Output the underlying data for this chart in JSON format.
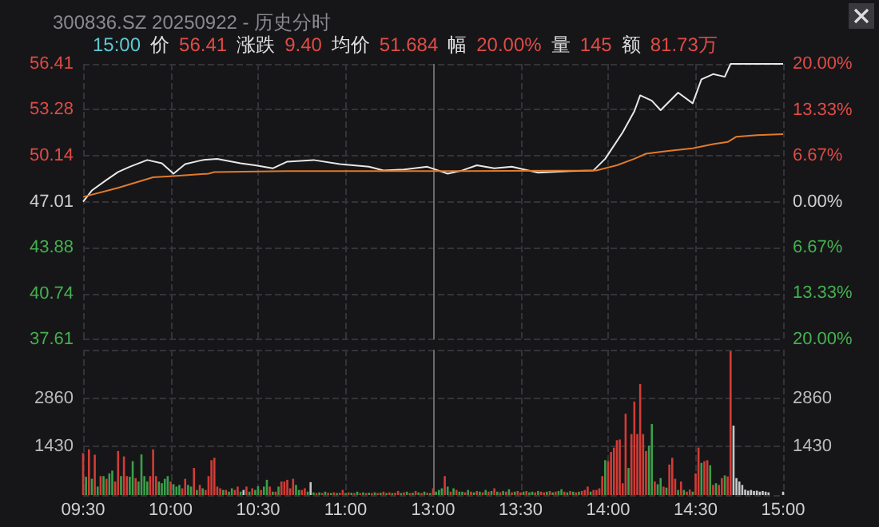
{
  "chart_data": [
    {
      "type": "line",
      "title": "300836.SZ 20250922 - 历史分时",
      "annotations": [
        "15:00",
        "价",
        "56.41",
        "涨跌",
        "9.40",
        "均价",
        "51.684",
        "幅",
        "20.00%",
        "量",
        "145",
        "额",
        "81.73万"
      ],
      "categories": [
        "09:30",
        null,
        null,
        null,
        null,
        null,
        null,
        null,
        null,
        null,
        null,
        null,
        null,
        null,
        null,
        null,
        null,
        null,
        null,
        null,
        null,
        null,
        null,
        null,
        null,
        null,
        null,
        null,
        null,
        null,
        "10:00",
        null,
        null,
        null,
        null,
        null,
        null,
        null,
        null,
        null,
        null,
        null,
        null,
        null,
        null,
        null,
        null,
        null,
        null,
        null,
        null,
        null,
        null,
        null,
        null,
        null,
        null,
        null,
        null,
        null,
        "10:30",
        null,
        null,
        null,
        null,
        null,
        null,
        null,
        null,
        null,
        null,
        null,
        null,
        null,
        null,
        null,
        null,
        null,
        null,
        null,
        null,
        null,
        null,
        null,
        null,
        null,
        null,
        null,
        null,
        null,
        "11:00",
        null,
        null,
        null,
        null,
        null,
        null,
        null,
        null,
        null,
        null,
        null,
        null,
        null,
        null,
        null,
        null,
        null,
        null,
        null,
        null,
        null,
        null,
        null,
        null,
        null,
        null,
        null,
        null,
        null,
        "13:00",
        null,
        null,
        null,
        null,
        null,
        null,
        null,
        null,
        null,
        null,
        null,
        null,
        null,
        null,
        null,
        null,
        null,
        null,
        null,
        null,
        null,
        null,
        null,
        null,
        null,
        null,
        null,
        null,
        null,
        "13:30",
        null,
        null,
        null,
        null,
        null,
        null,
        null,
        null,
        null,
        null,
        null,
        null,
        null,
        null,
        null,
        null,
        null,
        null,
        null,
        null,
        null,
        null,
        null,
        null,
        null,
        null,
        null,
        null,
        null,
        "14:00",
        null,
        null,
        null,
        null,
        null,
        null,
        null,
        null,
        null,
        null,
        null,
        null,
        null,
        null,
        null,
        null,
        null,
        null,
        null,
        null,
        null,
        null,
        null,
        null,
        null,
        null,
        null,
        null,
        null,
        "14:30",
        null,
        null,
        null,
        null,
        null,
        null,
        null,
        null,
        null,
        null,
        null,
        null,
        null,
        null,
        null,
        null,
        null,
        null,
        null,
        null,
        null,
        null,
        null,
        null,
        null,
        null,
        null,
        null,
        null,
        "15:00"
      ],
      "tick_labels": "y",
      "ylim": [
        37.61,
        56.41
      ],
      "yticks": [
        37.61,
        40.74,
        43.88,
        47.01,
        50.14,
        53.28,
        56.41
      ],
      "y2lim": [
        -20,
        20
      ],
      "y2ticks": [
        {
          "value": -20,
          "label": "20.00%"
        },
        {
          "value": -13.33,
          "label": "13.33%"
        },
        {
          "value": -6.67,
          "label": "6.67%"
        },
        {
          "value": 0,
          "label": "0.00%"
        },
        {
          "value": 6.67,
          "label": "6.67%"
        },
        {
          "value": 13.33,
          "label": "13.33%"
        },
        {
          "value": 20,
          "label": "20.00%"
        }
      ],
      "grid": true,
      "ref_lines": [
        {
          "axis": "x",
          "value": "13:00",
          "color": "#6a6a6a"
        }
      ],
      "series": [
        {
          "color": "#e8e8e8",
          "values": [
            47.0,
            null,
            null,
            47.77,
            null,
            null,
            null,
            null,
            48.49,
            null,
            null,
            null,
            49.03,
            null,
            null,
            null,
            49.39,
            null,
            null,
            null,
            null,
            null,
            49.85,
            null,
            null,
            null,
            null,
            49.63,
            null,
            null,
            null,
            48.92,
            null,
            null,
            null,
            49.57,
            null,
            null,
            null,
            null,
            null,
            49.85,
            null,
            null,
            null,
            null,
            49.93,
            null,
            null,
            null,
            null,
            null,
            null,
            null,
            49.63,
            null,
            null,
            null,
            null,
            49.49,
            null,
            null,
            null,
            null,
            null,
            49.28,
            null,
            null,
            null,
            null,
            49.74,
            null,
            null,
            null,
            null,
            null,
            null,
            null,
            null,
            49.85,
            null,
            null,
            null,
            null,
            null,
            null,
            null,
            null,
            49.57,
            null,
            null,
            null,
            null,
            null,
            null,
            null,
            null,
            null,
            49.39,
            null,
            null,
            null,
            null,
            49.14,
            null,
            null,
            null,
            null,
            null,
            null,
            49.2,
            null,
            null,
            null,
            null,
            null,
            null,
            null,
            49.39,
            null,
            null,
            null,
            null,
            null,
            null,
            48.92,
            null,
            null,
            null,
            null,
            49.14,
            null,
            null,
            null,
            null,
            49.49,
            null,
            null,
            null,
            null,
            null,
            49.28,
            null,
            null,
            null,
            null,
            null,
            49.39,
            null,
            null,
            null,
            null,
            null,
            null,
            null,
            null,
            48.99,
            null,
            null,
            null,
            null,
            null,
            null,
            null,
            null,
            null,
            null,
            49.1,
            null,
            null,
            null,
            null,
            null,
            null,
            null,
            49.14,
            null,
            null,
            null,
            49.93,
            null,
            null,
            null,
            null,
            null,
            51.74,
            null,
            null,
            null,
            53.18,
            null,
            54.26,
            null,
            null,
            null,
            53.9,
            null,
            null,
            53.25,
            null,
            null,
            null,
            null,
            null,
            54.45,
            null,
            null,
            null,
            null,
            53.72,
            null,
            null,
            55.35,
            null,
            null,
            null,
            55.71,
            null,
            null,
            null,
            55.53,
            null,
            56.41,
            null,
            null,
            null,
            null,
            null,
            null,
            null,
            null,
            null,
            null,
            null,
            null,
            null,
            null,
            null,
            null,
            null,
            56.41
          ]
        },
        {
          "color": "#e07b2a",
          "values": [
            47.33,
            null,
            null,
            null,
            null,
            null,
            null,
            null,
            null,
            null,
            null,
            null,
            47.95,
            null,
            null,
            null,
            null,
            null,
            null,
            null,
            null,
            null,
            null,
            null,
            48.67,
            null,
            null,
            null,
            null,
            null,
            48.74,
            null,
            null,
            null,
            null,
            null,
            null,
            null,
            null,
            null,
            null,
            null,
            null,
            48.92,
            null,
            49.03,
            null,
            null,
            null,
            null,
            null,
            null,
            null,
            null,
            null,
            null,
            null,
            null,
            null,
            null,
            null,
            null,
            null,
            null,
            null,
            null,
            null,
            null,
            null,
            null,
            49.1,
            null,
            null,
            null,
            null,
            null,
            null,
            null,
            null,
            null,
            null,
            null,
            null,
            null,
            null,
            null,
            null,
            null,
            null,
            null,
            null,
            null,
            null,
            null,
            null,
            null,
            null,
            null,
            null,
            null,
            null,
            null,
            null,
            null,
            null,
            null,
            null,
            null,
            null,
            null,
            null,
            null,
            null,
            null,
            null,
            null,
            null,
            null,
            null,
            null,
            null,
            null,
            null,
            null,
            null,
            null,
            null,
            null,
            null,
            null,
            49.1,
            null,
            null,
            null,
            null,
            null,
            null,
            null,
            null,
            null,
            null,
            null,
            null,
            null,
            null,
            null,
            null,
            null,
            null,
            null,
            null,
            null,
            null,
            null,
            null,
            null,
            null,
            null,
            null,
            null,
            null,
            null,
            null,
            null,
            null,
            null,
            null,
            null,
            null,
            null,
            null,
            null,
            null,
            null,
            null,
            null,
            49.14,
            null,
            null,
            null,
            null,
            null,
            null,
            49.49,
            null,
            null,
            null,
            null,
            null,
            49.93,
            null,
            null,
            null,
            50.28,
            null,
            null,
            null,
            null,
            null,
            null,
            50.46,
            null,
            null,
            null,
            null,
            null,
            null,
            null,
            null,
            50.65,
            null,
            null,
            null,
            null,
            null,
            null,
            50.93,
            null,
            null,
            null,
            null,
            51.08,
            null,
            null,
            51.44,
            null,
            null,
            null,
            null,
            null,
            null,
            51.55,
            null,
            null,
            null,
            null,
            null,
            null,
            null,
            null,
            51.62
          ]
        }
      ]
    },
    {
      "type": "bar",
      "categories": [
        "09:30",
        null,
        null,
        null,
        null,
        null,
        null,
        null,
        null,
        null,
        null,
        null,
        null,
        null,
        null,
        null,
        null,
        null,
        null,
        null,
        null,
        null,
        null,
        null,
        null,
        null,
        null,
        null,
        null,
        null,
        "10:00",
        null,
        null,
        null,
        null,
        null,
        null,
        null,
        null,
        null,
        null,
        null,
        null,
        null,
        null,
        null,
        null,
        null,
        null,
        null,
        null,
        null,
        null,
        null,
        null,
        null,
        null,
        null,
        null,
        null,
        "10:30",
        null,
        null,
        null,
        null,
        null,
        null,
        null,
        null,
        null,
        null,
        null,
        null,
        null,
        null,
        null,
        null,
        null,
        null,
        null,
        null,
        null,
        null,
        null,
        null,
        null,
        null,
        null,
        null,
        null,
        "11:00",
        null,
        null,
        null,
        null,
        null,
        null,
        null,
        null,
        null,
        null,
        null,
        null,
        null,
        null,
        null,
        null,
        null,
        null,
        null,
        null,
        null,
        null,
        null,
        null,
        null,
        null,
        null,
        null,
        null,
        "13:00",
        null,
        null,
        null,
        null,
        null,
        null,
        null,
        null,
        null,
        null,
        null,
        null,
        null,
        null,
        null,
        null,
        null,
        null,
        null,
        null,
        null,
        null,
        null,
        null,
        null,
        null,
        null,
        null,
        null,
        "13:30",
        null,
        null,
        null,
        null,
        null,
        null,
        null,
        null,
        null,
        null,
        null,
        null,
        null,
        null,
        null,
        null,
        null,
        null,
        null,
        null,
        null,
        null,
        null,
        null,
        null,
        null,
        null,
        null,
        null,
        "14:00",
        null,
        null,
        null,
        null,
        null,
        null,
        null,
        null,
        null,
        null,
        null,
        null,
        null,
        null,
        null,
        null,
        null,
        null,
        null,
        null,
        null,
        null,
        null,
        null,
        null,
        null,
        null,
        null,
        null,
        "14:30",
        null,
        null,
        null,
        null,
        null,
        null,
        null,
        null,
        null,
        null,
        null,
        null,
        null,
        null,
        null,
        null,
        null,
        null,
        null,
        null,
        null,
        null,
        null,
        null,
        null,
        null,
        null,
        null,
        null,
        "15:00"
      ],
      "values": [
        1240,
        540,
        1350,
        480,
        1190,
        250,
        560,
        560,
        480,
        640,
        720,
        400,
        1300,
        560,
        1140,
        560,
        540,
        1000,
        500,
        400,
        1200,
        560,
        400,
        560,
        1350,
        560,
        400,
        350,
        480,
        560,
        400,
        320,
        250,
        300,
        200,
        480,
        300,
        250,
        800,
        150,
        300,
        200,
        150,
        560,
        1030,
        1100,
        250,
        200,
        150,
        150,
        100,
        200,
        150,
        250,
        100,
        150,
        250,
        100,
        200,
        150,
        260,
        150,
        250,
        450,
        250,
        100,
        100,
        250,
        400,
        400,
        450,
        200,
        480,
        300,
        150,
        150,
        200,
        100,
        380,
        80,
        60,
        80,
        60,
        100,
        70,
        60,
        80,
        60,
        70,
        150,
        60,
        80,
        70,
        60,
        100,
        60,
        80,
        60,
        70,
        60,
        80,
        60,
        70,
        100,
        60,
        80,
        60,
        70,
        120,
        60,
        80,
        100,
        60,
        70,
        120,
        80,
        60,
        100,
        70,
        60,
        200,
        100,
        150,
        200,
        560,
        250,
        100,
        200,
        150,
        100,
        100,
        80,
        150,
        100,
        80,
        120,
        100,
        80,
        150,
        100,
        120,
        200,
        100,
        80,
        120,
        100,
        170,
        80,
        100,
        120,
        80,
        100,
        120,
        80,
        100,
        80,
        120,
        100,
        80,
        100,
        120,
        80,
        100,
        120,
        170,
        100,
        80,
        120,
        100,
        80,
        100,
        120,
        150,
        250,
        100,
        150,
        150,
        200,
        560,
        1030,
        1000,
        1270,
        1400,
        1620,
        1640,
        350,
        2400,
        800,
        1800,
        2760,
        1800,
        3280,
        1800,
        1300,
        1460,
        2100,
        400,
        320,
        500,
        250,
        220,
        900,
        1100,
        480,
        150,
        400,
        150,
        100,
        160,
        100,
        640,
        1400,
        950,
        1000,
        1030,
        880,
        300,
        350,
        300,
        500,
        580,
        550,
        4250,
        2050,
        500,
        400,
        300,
        160,
        130,
        150,
        120,
        130,
        100,
        120,
        100,
        80,
        null,
        null,
        null,
        null,
        100
      ],
      "colors": [
        "#d23c36",
        "#3aa04a",
        "#d23c36",
        "#3aa04a",
        "#d23c36",
        "#3aa04a",
        "#d23c36",
        "#3aa04a",
        "#d23c36",
        "#3aa04a",
        "#3aa04a",
        "#d23c36",
        "#d23c36",
        "#3aa04a",
        "#d23c36",
        "#d23c36",
        "#3aa04a",
        "#3aa04a",
        "#d23c36",
        "#3aa04a",
        "#3aa04a",
        "#3aa04a",
        "#3aa04a",
        "#d23c36",
        "#d23c36",
        "#d23c36",
        "#3aa04a",
        "#3aa04a",
        "#3aa04a",
        "#3aa04a",
        "#d23c36",
        "#3aa04a",
        "#3aa04a",
        "#3aa04a",
        "#d23c36",
        "#d23c36",
        "#3aa04a",
        "#3aa04a",
        "#d23c36",
        "#3aa04a",
        "#d23c36",
        "#3aa04a",
        "#d23c36",
        "#d23c36",
        "#d23c36",
        "#d23c36",
        "#d23c36",
        "#d23c36",
        "#3aa04a",
        "#d23c36",
        "#3aa04a",
        "#3aa04a",
        "#d23c36",
        "#d23c36",
        "#3aa04a",
        "#c8c8c8",
        "#d23c36",
        "#3aa04a",
        "#d23c36",
        "#3aa04a",
        "#3aa04a",
        "#d23c36",
        "#3aa04a",
        "#3aa04a",
        "#d23c36",
        "#3aa04a",
        "#d23c36",
        "#3aa04a",
        "#d23c36",
        "#d23c36",
        "#d23c36",
        "#d23c36",
        "#d23c36",
        "#3aa04a",
        "#3aa04a",
        "#d23c36",
        "#d23c36",
        "#3aa04a",
        "#c8c8c8",
        "#3aa04a",
        "#d23c36",
        "#3aa04a",
        "#d23c36",
        "#3aa04a",
        "#d23c36",
        "#3aa04a",
        "#d23c36",
        "#3aa04a",
        "#d23c36",
        "#d23c36",
        "#3aa04a",
        "#d23c36",
        "#3aa04a",
        "#d23c36",
        "#3aa04a",
        "#d23c36",
        "#3aa04a",
        "#d23c36",
        "#3aa04a",
        "#d23c36",
        "#3aa04a",
        "#d23c36",
        "#3aa04a",
        "#d23c36",
        "#3aa04a",
        "#d23c36",
        "#3aa04a",
        "#d23c36",
        "#d23c36",
        "#3aa04a",
        "#d23c36",
        "#3aa04a",
        "#d23c36",
        "#3aa04a",
        "#d23c36",
        "#3aa04a",
        "#d23c36",
        "#3aa04a",
        "#d23c36",
        "#3aa04a",
        "#d23c36",
        "#3aa04a",
        "#3aa04a",
        "#3aa04a",
        "#d23c36",
        "#3aa04a",
        "#d23c36",
        "#3aa04a",
        "#d23c36",
        "#3aa04a",
        "#3aa04a",
        "#d23c36",
        "#3aa04a",
        "#d23c36",
        "#3aa04a",
        "#d23c36",
        "#3aa04a",
        "#d23c36",
        "#3aa04a",
        "#d23c36",
        "#3aa04a",
        "#d23c36",
        "#3aa04a",
        "#d23c36",
        "#3aa04a",
        "#d23c36",
        "#3aa04a",
        "#d23c36",
        "#3aa04a",
        "#d23c36",
        "#d23c36",
        "#3aa04a",
        "#d23c36",
        "#3aa04a",
        "#3aa04a",
        "#d23c36",
        "#3aa04a",
        "#d23c36",
        "#d23c36",
        "#3aa04a",
        "#d23c36",
        "#3aa04a",
        "#d23c36",
        "#3aa04a",
        "#3aa04a",
        "#d23c36",
        "#3aa04a",
        "#d23c36",
        "#3aa04a",
        "#d23c36",
        "#3aa04a",
        "#d23c36",
        "#d23c36",
        "#d23c36",
        "#3aa04a",
        "#d23c36",
        "#d23c36",
        "#d23c36",
        "#d23c36",
        "#3aa04a",
        "#d23c36",
        "#d23c36",
        "#d23c36",
        "#d23c36",
        "#d23c36",
        "#d23c36",
        "#d23c36",
        "#3aa04a",
        "#d23c36",
        "#d23c36",
        "#d23c36",
        "#d23c36",
        "#d23c36",
        "#d23c36",
        "#3aa04a",
        "#3aa04a",
        "#d23c36",
        "#3aa04a",
        "#3aa04a",
        "#d23c36",
        "#3aa04a",
        "#d23c36",
        "#d23c36",
        "#d23c36",
        "#3aa04a",
        "#d23c36",
        "#3aa04a",
        "#d23c36",
        "#d23c36",
        "#3aa04a",
        "#d23c36",
        "#d23c36",
        "#3aa04a",
        "#d23c36",
        "#d23c36",
        "#3aa04a",
        "#d23c36",
        "#3aa04a",
        "#d23c36",
        "#d23c36",
        "#3aa04a",
        "#d23c36",
        "#d23c36",
        "#c8c8c8",
        "#c8c8c8",
        "#c8c8c8",
        "#c8c8c8",
        "#c8c8c8",
        "#c8c8c8",
        "#c8c8c8",
        "#c8c8c8",
        "#c8c8c8",
        "#c8c8c8",
        "#c8c8c8",
        "#c8c8c8",
        "#c8c8c8",
        "#c8c8c8",
        "#c8c8c8",
        "#c8c8c8",
        "#c8c8c8",
        "#c8c8c8"
      ],
      "ylim": [
        0,
        4290
      ],
      "yticks": [
        {
          "value": 0,
          "label": null
        },
        1430,
        2860,
        {
          "value": 4290,
          "label": null
        }
      ],
      "y2lim": [
        0,
        4290
      ],
      "y2ticks": [
        {
          "value": 0,
          "label": null
        },
        1430,
        2860,
        {
          "value": 4290,
          "label": null
        }
      ],
      "grid": true,
      "ref_lines": [
        {
          "axis": "x",
          "value": "13:00",
          "color": "#6a6a6a"
        }
      ]
    }
  ]
}
